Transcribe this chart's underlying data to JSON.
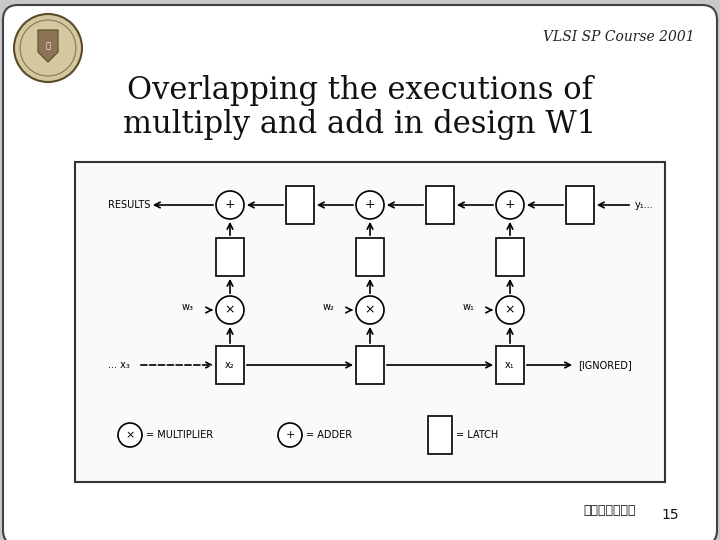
{
  "title_line1": "Overlapping the executions of",
  "title_line2": "multiply and add in design W1",
  "header": "VLSI SP Course 2001",
  "footer_chinese": "台大電機系安字",
  "page_number": "15",
  "outer_bg": "#c8c8c8",
  "slide_bg": "#ffffff",
  "diagram_bg": "#ffffff",
  "title_fontsize": 22,
  "header_fontsize": 10
}
